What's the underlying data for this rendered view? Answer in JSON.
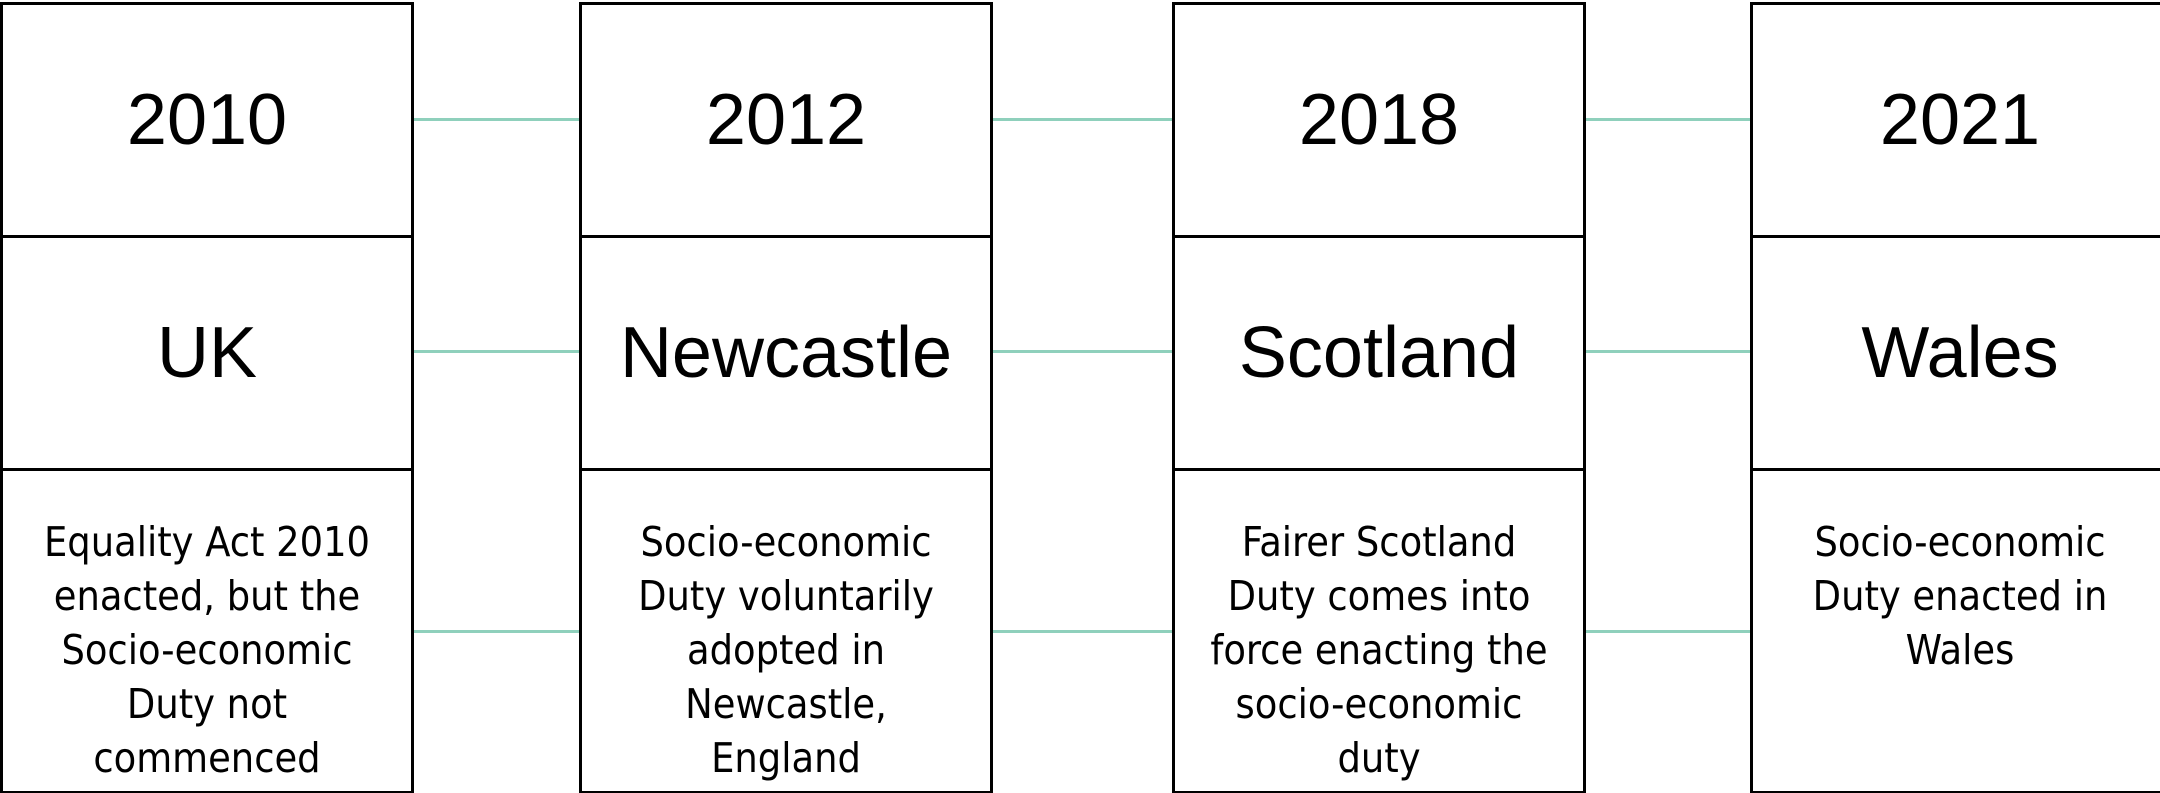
{
  "items": [
    {
      "year": "2010",
      "place": "UK",
      "description": "Equality Act 2010 enacted, but the Socio-economic Duty not commenced"
    },
    {
      "year": "2012",
      "place": "Newcastle",
      "description": "Socio-economic Duty voluntarily adopted in Newcastle, England"
    },
    {
      "year": "2018",
      "place": "Scotland",
      "description": "Fairer Scotland Duty comes into force enacting the socio-economic duty"
    },
    {
      "year": "2021",
      "place": "Wales",
      "description": "Socio-economic Duty enacted in Wales"
    }
  ]
}
